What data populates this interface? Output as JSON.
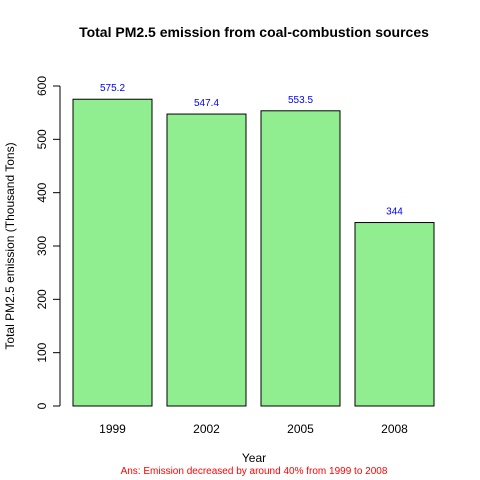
{
  "chart_data": {
    "type": "bar",
    "title": "Total PM2.5 emission from coal-combustion sources",
    "xlabel": "Year",
    "ylabel": "Total PM2.5 emission (Thousand Tons)",
    "categories": [
      "1999",
      "2002",
      "2005",
      "2008"
    ],
    "values": [
      575.2,
      547.4,
      553.5,
      344
    ],
    "data_labels": [
      "575.2",
      "547.4",
      "553.5",
      "344"
    ],
    "ylim": [
      0,
      600
    ],
    "yticks": [
      0,
      100,
      200,
      300,
      400,
      500,
      600
    ],
    "ytick_labels": [
      "0",
      "100",
      "200",
      "300",
      "400",
      "500",
      "600"
    ],
    "grid": false,
    "legend": "none",
    "annotation": "Ans: Emission decreased by around 40% from 1999 to 2008"
  },
  "colors": {
    "bar_fill": "#90ee90",
    "bar_stroke": "#000000",
    "data_label": "#0000ff",
    "annotation": "#ff0000"
  }
}
